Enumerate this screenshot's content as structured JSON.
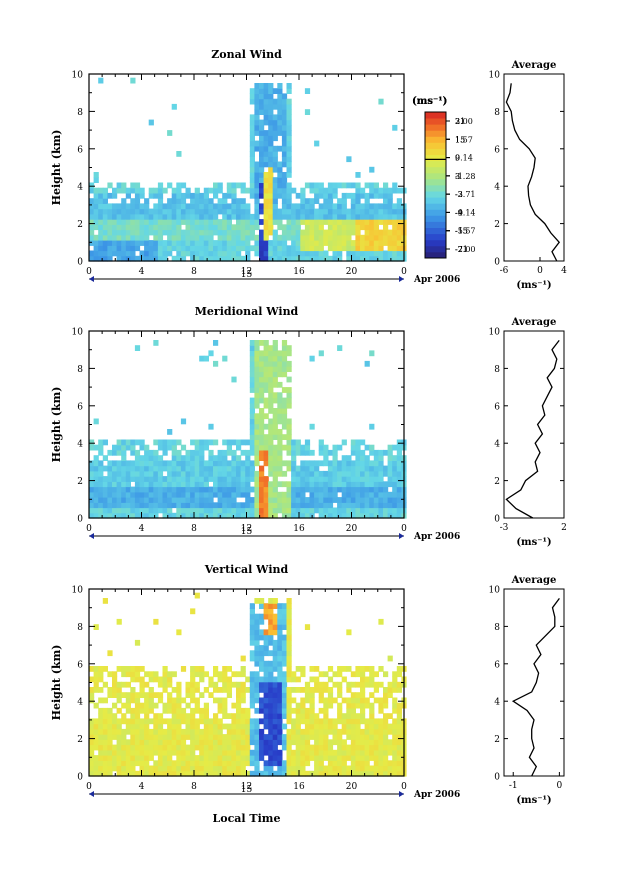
{
  "figure": {
    "xaxis_label": "Local Time",
    "date_label": "Apr 2006",
    "day_label": "15",
    "x_ticks": [
      "0",
      "4",
      "8",
      "12",
      "16",
      "20",
      "0"
    ],
    "y_ticks": [
      "0",
      "2",
      "4",
      "6",
      "8",
      "10"
    ],
    "ylabel": "Height (km)",
    "avg_title": "Average",
    "unit_label": "(ms⁻¹)"
  },
  "chart_data": [
    {
      "type": "heatmap",
      "title": "Zonal Wind",
      "xlabel": "Local Time",
      "ylabel": "Height (km)",
      "xlim": [
        0,
        24
      ],
      "ylim": [
        0,
        10
      ],
      "colorbar_label": "(ms⁻¹)",
      "colorbar_ticks": [
        "21",
        "15",
        "9",
        "3",
        "-3",
        "-9",
        "-15",
        "-21"
      ],
      "colorbar_range": [
        -24,
        24
      ],
      "background_value": -4,
      "regions": [
        {
          "t": [
            0,
            24
          ],
          "h": [
            1.0,
            2.2
          ],
          "v": -2
        },
        {
          "t": [
            0,
            24
          ],
          "h": [
            2.2,
            3.4
          ],
          "v": -6
        },
        {
          "t": [
            0,
            5
          ],
          "h": [
            0.0,
            1.0
          ],
          "v": -9
        },
        {
          "t": [
            16,
            24
          ],
          "h": [
            0.3,
            2.2
          ],
          "v": 6
        },
        {
          "t": [
            20,
            24
          ],
          "h": [
            0.5,
            2.0
          ],
          "v": 12
        },
        {
          "t": [
            12.4,
            14.8
          ],
          "h": [
            3.0,
            9.5
          ],
          "v": -8
        },
        {
          "t": [
            12.6,
            13.4
          ],
          "h": [
            0.0,
            4.0
          ],
          "v": -18
        },
        {
          "t": [
            13.2,
            13.8
          ],
          "h": [
            1.0,
            5.0
          ],
          "v": 10
        }
      ],
      "average_profile": {
        "xlim": [
          -6,
          4
        ],
        "x_ticks": [
          "-6",
          "0",
          "4"
        ],
        "heights": [
          0.0,
          0.5,
          1.0,
          1.5,
          2.0,
          2.5,
          3.0,
          3.5,
          4.0,
          4.5,
          5.0,
          5.5,
          6.0,
          6.5,
          7.0,
          7.5,
          8.0,
          8.5,
          9.0,
          9.5
        ],
        "values": [
          2.8,
          2.0,
          3.2,
          1.8,
          0.8,
          -0.8,
          -1.6,
          -1.9,
          -2.0,
          -1.4,
          -1.0,
          -0.8,
          -1.8,
          -3.4,
          -4.2,
          -4.6,
          -4.8,
          -5.6,
          -5.0,
          -4.8
        ]
      }
    },
    {
      "type": "heatmap",
      "title": "Meridional Wind",
      "xlabel": "Local Time",
      "ylabel": "Height (km)",
      "xlim": [
        0,
        24
      ],
      "ylim": [
        0,
        10
      ],
      "colorbar_label": "(ms⁻¹)",
      "colorbar_ticks": [
        "21",
        "15",
        "9",
        "3",
        "-3",
        "-9",
        "-15",
        "-21"
      ],
      "colorbar_range": [
        -24,
        24
      ],
      "background_value": -4,
      "regions": [
        {
          "t": [
            0,
            24
          ],
          "h": [
            0.3,
            1.5
          ],
          "v": -8
        },
        {
          "t": [
            0,
            24
          ],
          "h": [
            1.5,
            3.0
          ],
          "v": -5
        },
        {
          "t": [
            12.4,
            15.2
          ],
          "h": [
            0.0,
            9.5
          ],
          "v": 2
        },
        {
          "t": [
            12.8,
            13.4
          ],
          "h": [
            0.0,
            3.5
          ],
          "v": 18
        }
      ],
      "average_profile": {
        "xlim": [
          -3,
          2
        ],
        "x_ticks": [
          "-3",
          "2"
        ],
        "heights": [
          0.0,
          0.5,
          1.0,
          1.5,
          2.0,
          2.5,
          3.0,
          3.5,
          4.0,
          4.5,
          5.0,
          5.5,
          6.0,
          6.5,
          7.0,
          7.5,
          8.0,
          8.5,
          9.0,
          9.5
        ],
        "values": [
          -0.6,
          -2.0,
          -2.8,
          -1.6,
          -1.2,
          -0.2,
          -0.4,
          0.0,
          -0.4,
          0.2,
          -0.2,
          0.4,
          0.2,
          0.6,
          1.0,
          0.6,
          1.2,
          1.4,
          1.0,
          1.6
        ]
      }
    },
    {
      "type": "heatmap",
      "title": "Vertical Wind",
      "xlabel": "Local Time",
      "ylabel": "Height (km)",
      "xlim": [
        0,
        24
      ],
      "ylim": [
        0,
        10
      ],
      "colorbar_label": "(ms⁻¹)",
      "colorbar_ticks": [
        "3.00",
        "1.57",
        "0.14",
        "-1.28",
        "-2.71",
        "-4.14",
        "-5.57",
        "-7.00"
      ],
      "colorbar_range": [
        -7.7,
        3.7
      ],
      "background_value": 0.0,
      "regions": [
        {
          "t": [
            12.2,
            15.0
          ],
          "h": [
            0.0,
            9.0
          ],
          "v": -3.5
        },
        {
          "t": [
            12.6,
            14.6
          ],
          "h": [
            0.5,
            5.0
          ],
          "v": -6.0
        },
        {
          "t": [
            13.0,
            14.0
          ],
          "h": [
            7.5,
            9.0
          ],
          "v": 1.8
        }
      ],
      "average_profile": {
        "xlim": [
          -1.2,
          0.1
        ],
        "x_ticks": [
          "-1",
          "0"
        ],
        "heights": [
          0.0,
          0.5,
          1.0,
          1.5,
          2.0,
          2.5,
          3.0,
          3.5,
          4.0,
          4.5,
          5.0,
          5.5,
          6.0,
          6.5,
          7.0,
          7.5,
          8.0,
          8.5,
          9.0,
          9.5
        ],
        "values": [
          -0.6,
          -0.5,
          -0.65,
          -0.55,
          -0.6,
          -0.6,
          -0.55,
          -0.7,
          -1.0,
          -0.6,
          -0.5,
          -0.45,
          -0.55,
          -0.4,
          -0.5,
          -0.3,
          -0.1,
          -0.1,
          -0.15,
          0.0
        ]
      }
    }
  ]
}
